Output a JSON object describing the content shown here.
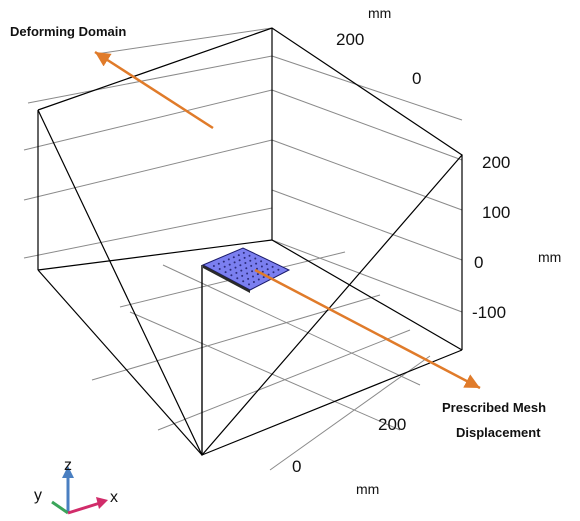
{
  "view": {
    "units": {
      "top": "mm",
      "right": "mm",
      "bottom": "mm"
    },
    "tick_labels": {
      "top_axis": [
        "200",
        "0"
      ],
      "right_axis": [
        "200",
        "100",
        "0",
        "-100"
      ],
      "bottom_axis": [
        "200",
        "0"
      ]
    }
  },
  "annotations": {
    "deforming_domain": "Deforming Domain",
    "prescribed_line1": "Prescribed Mesh",
    "prescribed_line2": "Displacement",
    "arrow_color": "#e07b2a"
  },
  "triad": {
    "z_label": "z",
    "y_label": "y",
    "x_label": "x",
    "z_color": "#4a7fc1",
    "y_color": "#3aa55a",
    "x_color": "#d12c6a"
  },
  "mesh_plate": {
    "fill": "#7b7ff0"
  }
}
